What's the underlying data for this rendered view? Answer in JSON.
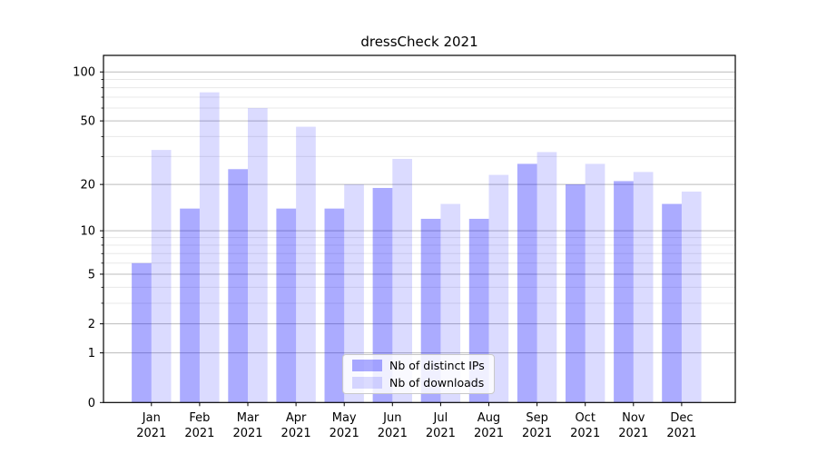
{
  "title": "dressCheck 2021",
  "legend": {
    "items": [
      {
        "label": "Nb of distinct IPs",
        "color": "rgba(0,0,255,0.33)"
      },
      {
        "label": "Nb of downloads",
        "color": "rgba(0,0,255,0.14)"
      }
    ]
  },
  "colors": {
    "bar_ips": "rgba(0,0,255,0.33)",
    "bar_downloads": "rgba(0,0,255,0.14)",
    "grid_major": "#bcbcbc",
    "grid_minor": "#e8e8e8",
    "spine": "#000000",
    "text": "#000000"
  },
  "chart_data": {
    "type": "bar",
    "title": "dressCheck 2021",
    "categories": [
      "Jan 2021",
      "Feb 2021",
      "Mar 2021",
      "Apr 2021",
      "May 2021",
      "Jun 2021",
      "Jul 2021",
      "Aug 2021",
      "Sep 2021",
      "Oct 2021",
      "Nov 2021",
      "Dec 2021"
    ],
    "series": [
      {
        "name": "Nb of distinct IPs",
        "values": [
          6,
          14,
          25,
          14,
          14,
          19,
          12,
          12,
          27,
          20,
          21,
          15
        ],
        "color": "rgba(0,0,255,0.33)"
      },
      {
        "name": "Nb of downloads",
        "values": [
          33,
          75,
          60,
          46,
          20,
          29,
          15,
          23,
          32,
          27,
          24,
          18
        ],
        "color": "rgba(0,0,255,0.14)"
      }
    ],
    "xlabel": "",
    "ylabel": "",
    "yscale": "log1p",
    "ylim": [
      0,
      126
    ],
    "y_ticks_major": [
      0,
      1,
      2,
      5,
      10,
      20,
      50,
      100
    ],
    "y_tick_labels": [
      "0",
      "1",
      "2",
      "5",
      "10",
      "20",
      "50",
      "100"
    ],
    "y_ticks_minor": [
      3,
      4,
      6,
      7,
      8,
      9,
      30,
      40,
      60,
      70,
      80,
      90
    ],
    "grid": true,
    "legend_position": "lower center"
  }
}
